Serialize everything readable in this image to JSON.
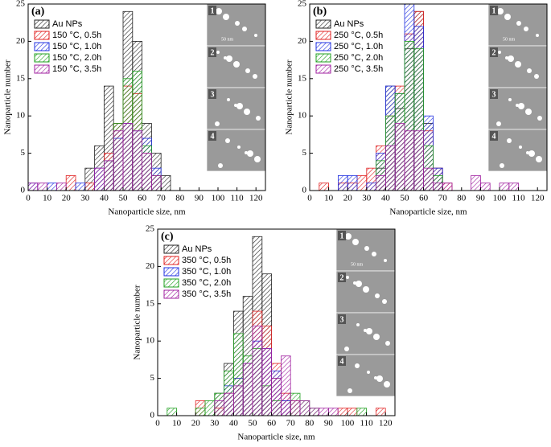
{
  "chart_data": [
    {
      "type": "histogram",
      "panel_label": "(a)",
      "x_label": "Nanoparticle size, nm",
      "y_label": "Nanoparticle number",
      "bins": [
        0,
        5,
        10,
        15,
        20,
        25,
        30,
        35,
        40,
        45,
        50,
        55,
        60,
        65,
        70,
        75,
        80,
        85,
        90,
        95,
        100,
        105,
        110,
        115,
        120,
        125
      ],
      "xlim": [
        0,
        125
      ],
      "xticks": [
        0,
        10,
        20,
        30,
        40,
        50,
        60,
        70,
        80,
        90,
        100,
        110,
        120
      ],
      "ylim": [
        0,
        25
      ],
      "yticks": [
        0,
        5,
        10,
        15,
        20,
        25
      ],
      "inset_labels": [
        "1",
        "2",
        "3",
        "4"
      ],
      "scale_bar": "50 nm",
      "series": [
        {
          "name": "Au NPs",
          "color": "#222222",
          "values": [
            0,
            0,
            0,
            0,
            0,
            0,
            3,
            6,
            14,
            9,
            24,
            20,
            9,
            5,
            2,
            0,
            0,
            0,
            0,
            0,
            0,
            0,
            0,
            0,
            0
          ]
        },
        {
          "name": "150 °C, 0.5h",
          "color": "#e02020",
          "values": [
            0,
            0,
            0,
            0,
            2,
            0,
            1,
            0,
            5,
            9,
            14,
            13,
            5,
            2,
            0,
            0,
            0,
            0,
            0,
            0,
            0,
            0,
            0,
            0,
            0
          ]
        },
        {
          "name": "150 °C, 1.0h",
          "color": "#2030e0",
          "values": [
            1,
            0,
            1,
            0,
            0,
            1,
            0,
            3,
            4,
            7,
            9,
            8,
            7,
            3,
            0,
            0,
            0,
            0,
            0,
            0,
            0,
            0,
            0,
            0,
            0
          ]
        },
        {
          "name": "150 °C, 2.0h",
          "color": "#20a020",
          "values": [
            0,
            0,
            0,
            0,
            0,
            0,
            0,
            0,
            4,
            9,
            15,
            16,
            6,
            2,
            0,
            0,
            0,
            0,
            0,
            0,
            0,
            0,
            0,
            0,
            0
          ]
        },
        {
          "name": "150 °C, 3.5h",
          "color": "#a020a0",
          "values": [
            1,
            1,
            0,
            1,
            0,
            0,
            0,
            3,
            4,
            8,
            9,
            8,
            5,
            2,
            0,
            0,
            0,
            0,
            0,
            0,
            0,
            0,
            0,
            0,
            0
          ]
        }
      ]
    },
    {
      "type": "histogram",
      "panel_label": "(b)",
      "x_label": "Nanoparticle size, nm",
      "y_label": "Nanoparticle number",
      "bins": [
        0,
        5,
        10,
        15,
        20,
        25,
        30,
        35,
        40,
        45,
        50,
        55,
        60,
        65,
        70,
        75,
        80,
        85,
        90,
        95,
        100,
        105,
        110,
        115,
        120,
        125
      ],
      "xlim": [
        0,
        125
      ],
      "xticks": [
        0,
        10,
        20,
        30,
        40,
        50,
        60,
        70,
        80,
        90,
        100,
        110,
        120
      ],
      "ylim": [
        0,
        25
      ],
      "yticks": [
        0,
        5,
        10,
        15,
        20,
        25
      ],
      "inset_labels": [
        "1",
        "2",
        "3",
        "4"
      ],
      "scale_bar": "50 nm",
      "series": [
        {
          "name": "Au NPs",
          "color": "#222222",
          "values": [
            0,
            0,
            0,
            0,
            0,
            0,
            0,
            3,
            14,
            11,
            19,
            24,
            9,
            3,
            0,
            0,
            0,
            0,
            0,
            0,
            0,
            0,
            0,
            0,
            0
          ]
        },
        {
          "name": "250 °C, 0.5h",
          "color": "#e02020",
          "values": [
            0,
            1,
            0,
            1,
            1,
            2,
            3,
            6,
            10,
            14,
            21,
            24,
            8,
            3,
            1,
            0,
            0,
            0,
            0,
            0,
            0,
            0,
            0,
            0,
            0
          ]
        },
        {
          "name": "250 °C, 1.0h",
          "color": "#2030e0",
          "values": [
            0,
            0,
            0,
            2,
            2,
            0,
            1,
            5,
            14,
            13,
            25,
            22,
            10,
            3,
            0,
            0,
            0,
            0,
            0,
            0,
            0,
            0,
            0,
            0,
            0
          ]
        },
        {
          "name": "250 °C, 2.0h",
          "color": "#20a020",
          "values": [
            0,
            0,
            0,
            0,
            0,
            0,
            0,
            4,
            10,
            13,
            20,
            19,
            6,
            2,
            0,
            0,
            0,
            0,
            0,
            0,
            0,
            0,
            0,
            0,
            0
          ]
        },
        {
          "name": "250 °C, 3.5h",
          "color": "#a020a0",
          "values": [
            0,
            0,
            0,
            0,
            0,
            0,
            0,
            2,
            6,
            9,
            8,
            8,
            3,
            1,
            1,
            0,
            0,
            2,
            1,
            0,
            1,
            1,
            0,
            0,
            0
          ]
        }
      ]
    },
    {
      "type": "histogram",
      "panel_label": "(c)",
      "x_label": "Nanoparticle size, nm",
      "y_label": "Nanoparticle number",
      "bins": [
        0,
        5,
        10,
        15,
        20,
        25,
        30,
        35,
        40,
        45,
        50,
        55,
        60,
        65,
        70,
        75,
        80,
        85,
        90,
        95,
        100,
        105,
        110,
        115,
        120,
        125
      ],
      "xlim": [
        0,
        125
      ],
      "xticks": [
        0,
        10,
        20,
        30,
        40,
        50,
        60,
        70,
        80,
        90,
        100,
        110,
        120
      ],
      "ylim": [
        0,
        25
      ],
      "yticks": [
        0,
        5,
        10,
        15,
        20,
        25
      ],
      "inset_labels": [
        "1",
        "2",
        "3",
        "4"
      ],
      "scale_bar": "50 nm",
      "series": [
        {
          "name": "Au NPs",
          "color": "#222222",
          "values": [
            0,
            0,
            0,
            0,
            0,
            0,
            3,
            7,
            14,
            16,
            24,
            19,
            5,
            2,
            0,
            0,
            0,
            0,
            0,
            0,
            0,
            0,
            0,
            0,
            0
          ]
        },
        {
          "name": "350 °C, 0.5h",
          "color": "#e02020",
          "values": [
            0,
            0,
            0,
            0,
            2,
            0,
            1,
            3,
            5,
            7,
            14,
            12,
            7,
            3,
            2,
            0,
            0,
            0,
            0,
            1,
            1,
            0,
            0,
            1,
            0
          ]
        },
        {
          "name": "350 °C, 1.0h",
          "color": "#2030e0",
          "values": [
            0,
            0,
            0,
            0,
            0,
            0,
            0,
            4,
            5,
            7,
            10,
            9,
            6,
            2,
            0,
            0,
            0,
            0,
            0,
            0,
            0,
            0,
            0,
            0,
            0
          ]
        },
        {
          "name": "350 °C, 2.0h",
          "color": "#20a020",
          "values": [
            0,
            1,
            0,
            0,
            1,
            2,
            3,
            6,
            11,
            8,
            9,
            4,
            2,
            0,
            3,
            2,
            1,
            0,
            0,
            0,
            0,
            1,
            0,
            0,
            0
          ]
        },
        {
          "name": "350 °C, 3.5h",
          "color": "#a020a0",
          "values": [
            0,
            0,
            0,
            0,
            0,
            0,
            2,
            3,
            4,
            7,
            12,
            9,
            5,
            8,
            2,
            2,
            1,
            1,
            1,
            0,
            0,
            0,
            0,
            0,
            0
          ]
        }
      ]
    }
  ]
}
